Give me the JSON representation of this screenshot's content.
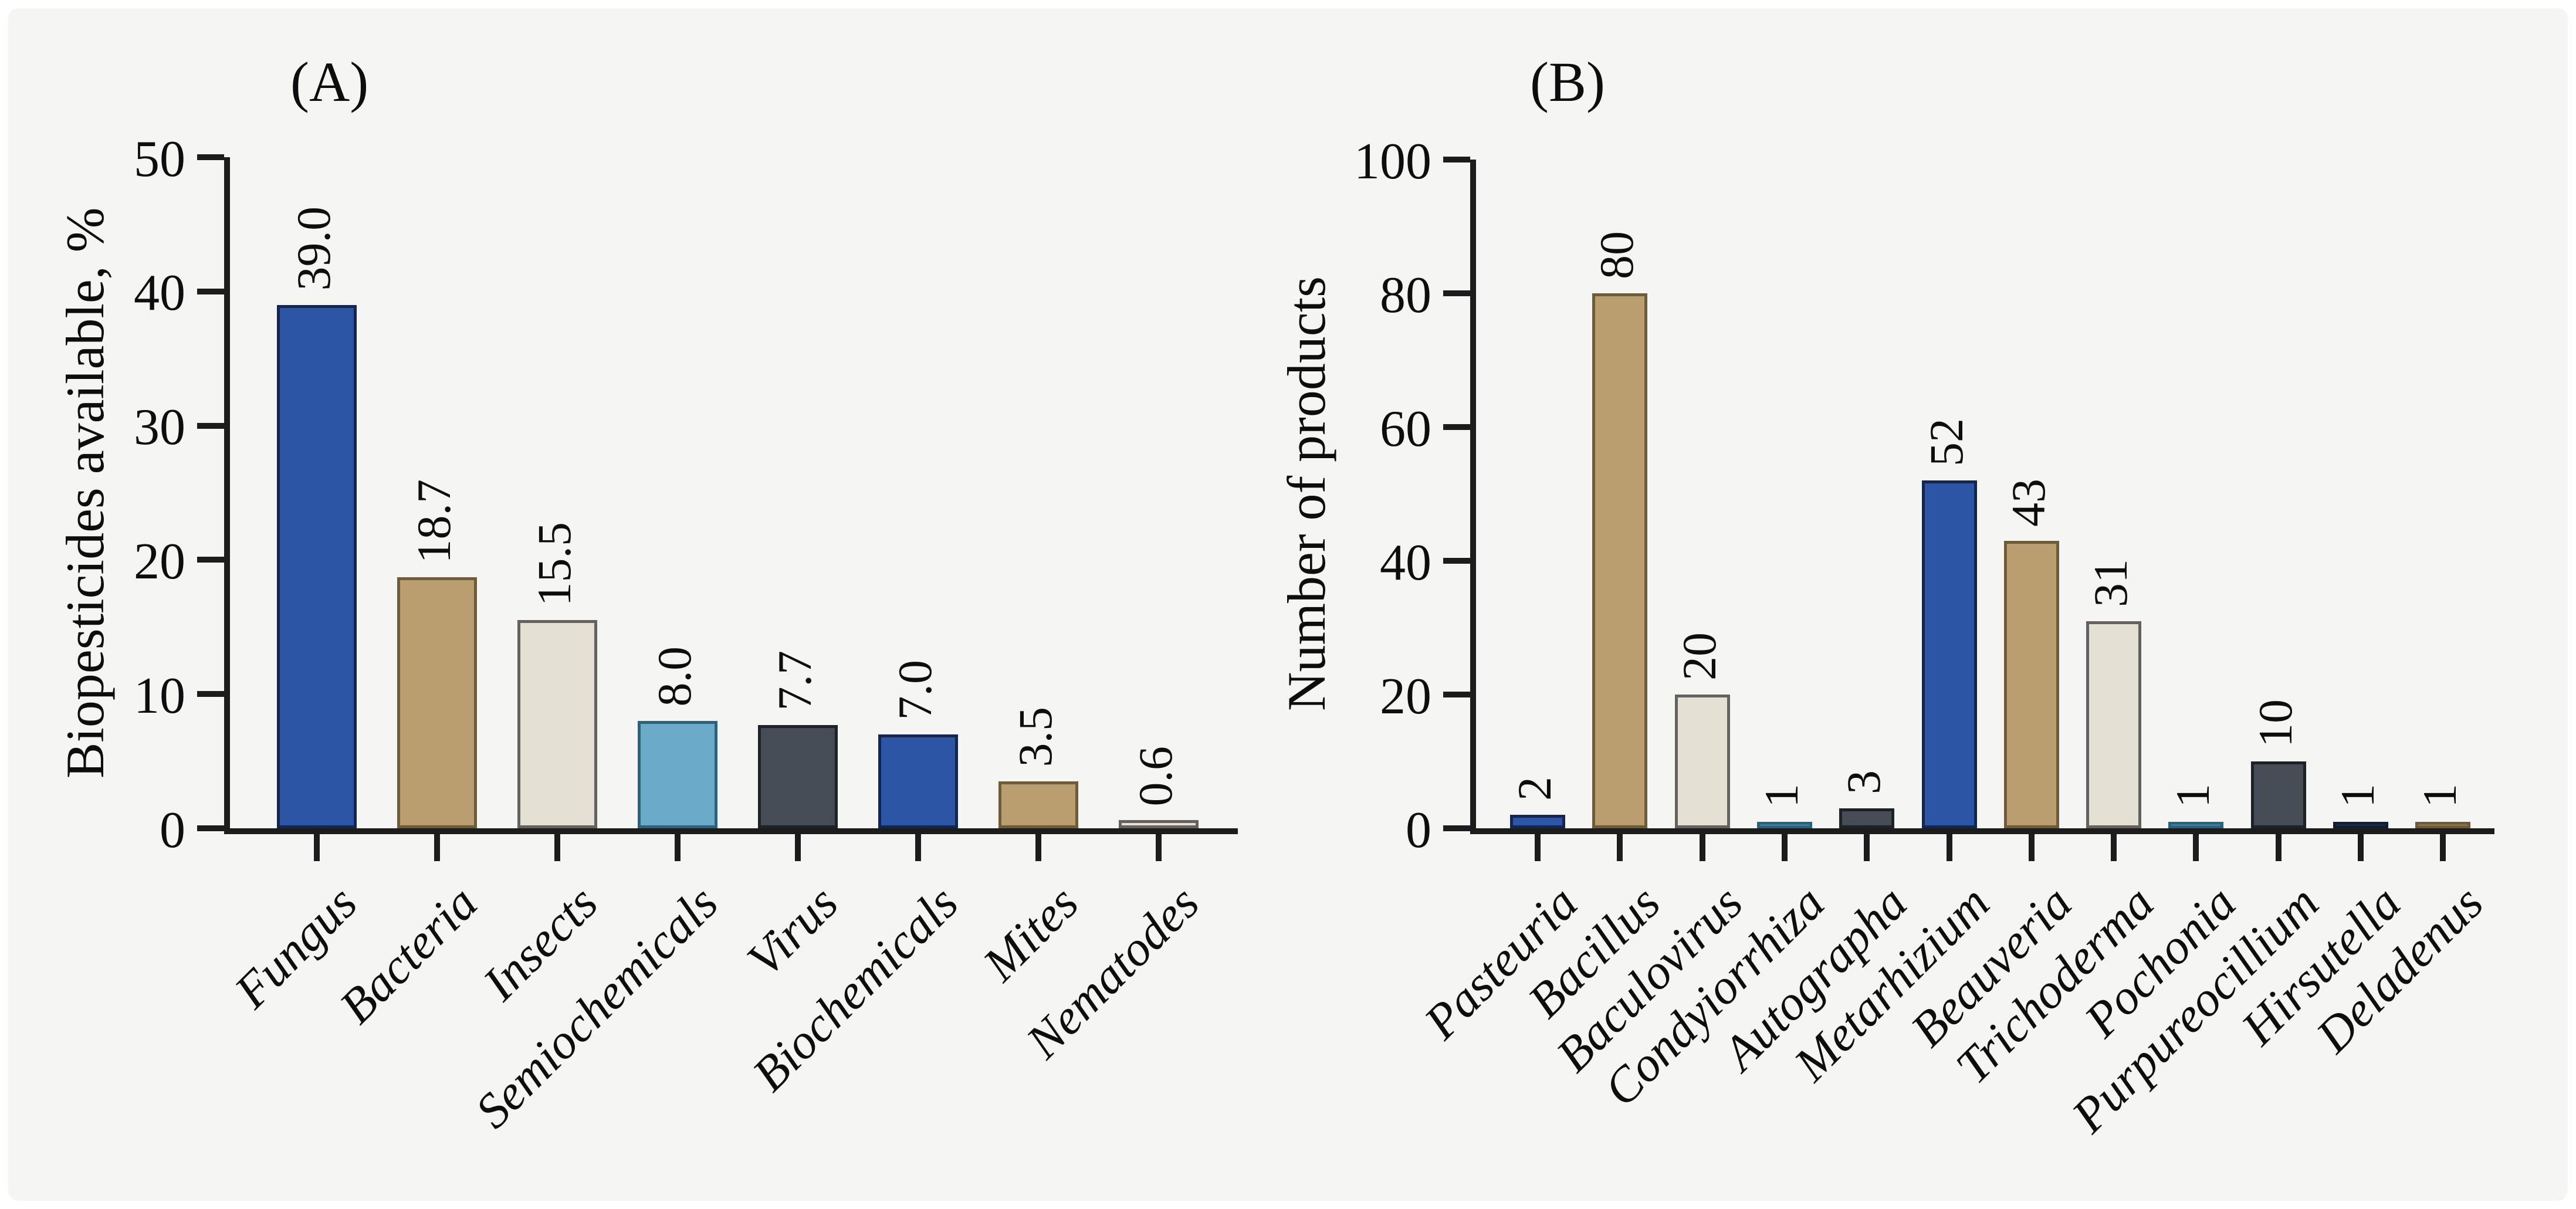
{
  "figure": {
    "page_background": "#FFFFFF",
    "background": "#F5F5F3",
    "axis_color": "#1C1C1C",
    "text_color": "#0D0D0D"
  },
  "palette": {
    "blue": {
      "fill": "#2D55A5",
      "stroke": "#16254E"
    },
    "tan": {
      "fill": "#BA9E6F",
      "stroke": "#6E5B39"
    },
    "cream": {
      "fill": "#E4E0D4",
      "stroke": "#63625E"
    },
    "lightblue": {
      "fill": "#6CABC8",
      "stroke": "#28627F"
    },
    "slate": {
      "fill": "#464C55",
      "stroke": "#1E2125"
    },
    "navy": {
      "fill": "#2A4067",
      "stroke": "#131E33"
    }
  },
  "chart_data": [
    {
      "type": "bar",
      "panel_label": "(A)",
      "y_axis_title": "Biopesticides available, %",
      "xlabel": "",
      "categories": [
        "Fungus",
        "Bacteria",
        "Insects",
        "Semiochemicals",
        "Virus",
        "Biochemicals",
        "Mites",
        "Nematodes"
      ],
      "values": [
        39.0,
        18.7,
        15.5,
        8.0,
        7.7,
        7.0,
        3.5,
        0.6
      ],
      "value_labels": [
        "39.0",
        "18.7",
        "15.5",
        "8.0",
        "7.7",
        "7.0",
        "3.5",
        "0.6"
      ],
      "bar_colors": [
        "blue",
        "tan",
        "cream",
        "lightblue",
        "slate",
        "blue",
        "tan",
        "cream"
      ],
      "ylim": [
        0,
        50
      ],
      "ytick_labels": [
        "0",
        "10",
        "20",
        "30",
        "40",
        "50"
      ],
      "grid": false,
      "legend": "none",
      "category_style": "italic-rotated-45",
      "value_label_style": "rotated-90"
    },
    {
      "type": "bar",
      "panel_label": "(B)",
      "y_axis_title": "Number of products",
      "xlabel": "",
      "categories": [
        "Pasteuria",
        "Bacillus",
        "Baculovirus",
        "Condyiorrhiza",
        "Autographa",
        "Metarhizium",
        "Beauveria",
        "Trichoderma",
        "Pochonia",
        "Purpureocillium",
        "Hirsutella",
        "Deladenus"
      ],
      "values": [
        2,
        80,
        20,
        1,
        3,
        52,
        43,
        31,
        1,
        10,
        1,
        1
      ],
      "value_labels": [
        "2",
        "80",
        "20",
        "1",
        "3",
        "52",
        "43",
        "31",
        "1",
        "10",
        "1",
        "1"
      ],
      "bar_colors": [
        "blue",
        "tan",
        "cream",
        "lightblue",
        "slate",
        "blue",
        "tan",
        "cream",
        "lightblue",
        "slate",
        "navy",
        "tan"
      ],
      "ylim": [
        0,
        100
      ],
      "ytick_labels": [
        "0",
        "20",
        "40",
        "60",
        "80",
        "100"
      ],
      "grid": false,
      "legend": "none",
      "category_style": "italic-rotated-45",
      "value_label_style": "rotated-90"
    }
  ]
}
